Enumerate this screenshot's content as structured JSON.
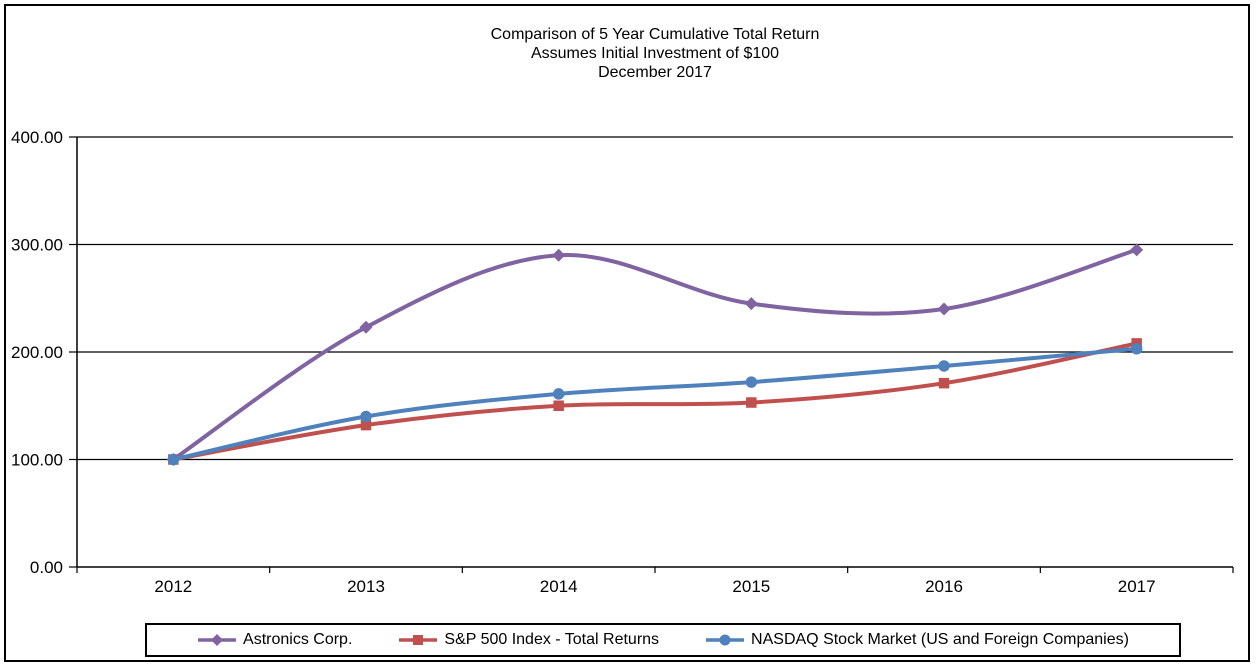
{
  "chart_data": {
    "type": "line",
    "smoothed": true,
    "title_lines": [
      "Comparison of 5 Year Cumulative Total Return",
      "Assumes Initial Investment of $100",
      "December 2017"
    ],
    "categories": [
      "2012",
      "2013",
      "2014",
      "2015",
      "2016",
      "2017"
    ],
    "series": [
      {
        "name": "Astronics Corp.",
        "color": "#8064A2",
        "marker": "diamond",
        "values": [
          100,
          223,
          290,
          245,
          240,
          295
        ]
      },
      {
        "name": "S&P 500 Index - Total Returns",
        "color": "#C0504D",
        "marker": "square",
        "values": [
          100,
          132,
          150,
          153,
          171,
          208
        ]
      },
      {
        "name": "NASDAQ Stock Market (US and Foreign Companies)",
        "color": "#4F81BD",
        "marker": "circle",
        "values": [
          100,
          140,
          161,
          172,
          187,
          203
        ]
      }
    ],
    "y_axis": {
      "min": 0,
      "max": 400,
      "tick_step": 100,
      "tick_labels": [
        "0.00",
        "100.00",
        "200.00",
        "300.00",
        "400.00"
      ]
    },
    "grid": true,
    "legend_position": "bottom",
    "axis_color": "#000000",
    "background_color": "#FFFFFF"
  }
}
